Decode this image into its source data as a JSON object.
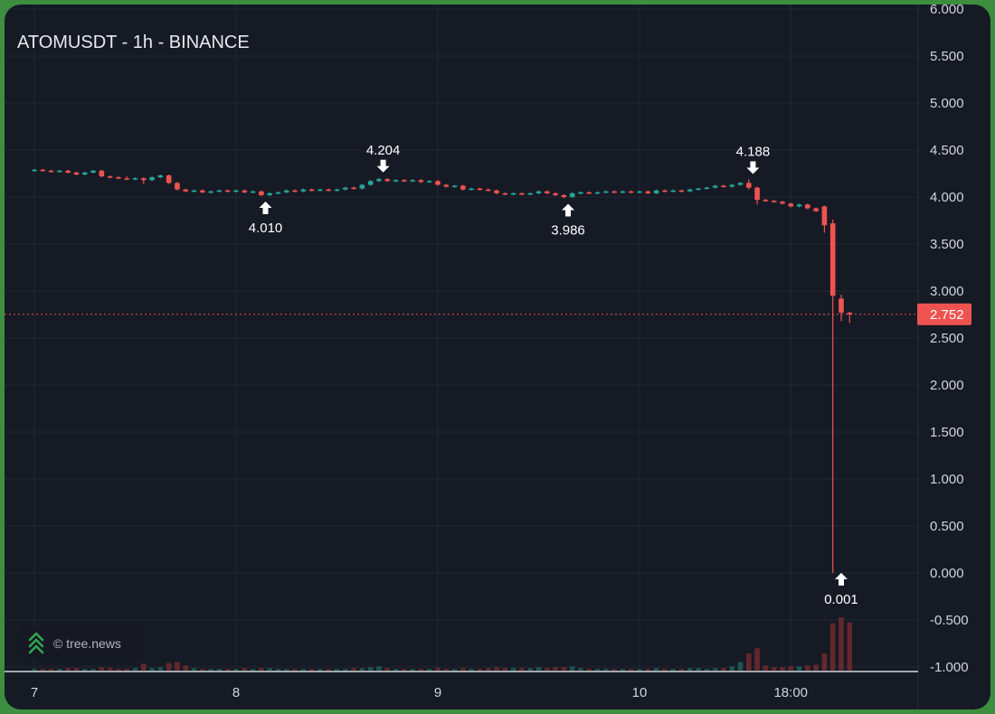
{
  "chart_data": {
    "type": "candlestick",
    "title": "ATOMUSDT - 1h - BINANCE",
    "y_ticks": [
      "6.000",
      "5.500",
      "5.000",
      "4.500",
      "4.000",
      "3.500",
      "3.000",
      "2.500",
      "2.000",
      "1.500",
      "1.000",
      "0.500",
      "0.000",
      "-0.500",
      "-1.000"
    ],
    "ylim": [
      -1.0,
      6.0
    ],
    "x_ticks": [
      {
        "label": "7",
        "hour": 0
      },
      {
        "label": "8",
        "hour": 24
      },
      {
        "label": "9",
        "hour": 48
      },
      {
        "label": "10",
        "hour": 72
      },
      {
        "label": "18:00",
        "hour": 90
      }
    ],
    "xlim": [
      -0.6,
      101.0
    ],
    "last_price": {
      "label": "2.752",
      "value": 2.752
    },
    "annotations": [
      {
        "label": "4.204",
        "hour": 41.5,
        "value": 4.204,
        "kind": "high"
      },
      {
        "label": "4.010",
        "hour": 27.5,
        "value": 4.01,
        "kind": "low"
      },
      {
        "label": "3.986",
        "hour": 63.5,
        "value": 3.986,
        "kind": "low"
      },
      {
        "label": "4.188",
        "hour": 85.5,
        "value": 4.188,
        "kind": "high"
      },
      {
        "label": "0.001",
        "hour": 96.0,
        "value": 0.001,
        "kind": "low"
      }
    ],
    "candles": [
      [
        0,
        4.28,
        4.29,
        4.3,
        4.27,
        0.2
      ],
      [
        1,
        4.29,
        4.28,
        4.3,
        4.27,
        0.2
      ],
      [
        2,
        4.28,
        4.27,
        4.29,
        4.26,
        0.2
      ],
      [
        3,
        4.27,
        4.28,
        4.29,
        4.26,
        0.2
      ],
      [
        4,
        4.28,
        4.26,
        4.29,
        4.25,
        0.3
      ],
      [
        5,
        4.26,
        4.24,
        4.27,
        4.23,
        0.3
      ],
      [
        6,
        4.24,
        4.26,
        4.27,
        4.23,
        0.2
      ],
      [
        7,
        4.26,
        4.28,
        4.29,
        4.25,
        0.2
      ],
      [
        8,
        4.28,
        4.22,
        4.29,
        4.21,
        0.4
      ],
      [
        9,
        4.22,
        4.21,
        4.23,
        4.2,
        0.3
      ],
      [
        10,
        4.21,
        4.2,
        4.22,
        4.19,
        0.2
      ],
      [
        11,
        4.2,
        4.19,
        4.22,
        4.18,
        0.2
      ],
      [
        12,
        4.19,
        4.2,
        4.21,
        4.18,
        0.3
      ],
      [
        13,
        4.2,
        4.18,
        4.21,
        4.14,
        0.8
      ],
      [
        14,
        4.18,
        4.21,
        4.22,
        4.17,
        0.3
      ],
      [
        15,
        4.21,
        4.23,
        4.24,
        4.2,
        0.4
      ],
      [
        16,
        4.23,
        4.15,
        4.24,
        4.14,
        0.9
      ],
      [
        17,
        4.15,
        4.08,
        4.16,
        4.07,
        1.0
      ],
      [
        18,
        4.08,
        4.06,
        4.09,
        4.05,
        0.6
      ],
      [
        19,
        4.06,
        4.07,
        4.08,
        4.05,
        0.3
      ],
      [
        20,
        4.07,
        4.05,
        4.08,
        4.04,
        0.2
      ],
      [
        21,
        4.05,
        4.06,
        4.07,
        4.04,
        0.2
      ],
      [
        22,
        4.06,
        4.07,
        4.08,
        4.05,
        0.2
      ],
      [
        23,
        4.07,
        4.06,
        4.08,
        4.05,
        0.2
      ],
      [
        24,
        4.06,
        4.07,
        4.08,
        4.05,
        0.2
      ],
      [
        25,
        4.07,
        4.05,
        4.08,
        4.04,
        0.3
      ],
      [
        26,
        4.05,
        4.06,
        4.07,
        4.04,
        0.2
      ],
      [
        27,
        4.06,
        4.02,
        4.07,
        4.01,
        0.3
      ],
      [
        28,
        4.02,
        4.04,
        4.05,
        4.01,
        0.3
      ],
      [
        29,
        4.04,
        4.05,
        4.06,
        4.03,
        0.2
      ],
      [
        30,
        4.05,
        4.07,
        4.08,
        4.04,
        0.2
      ],
      [
        31,
        4.07,
        4.06,
        4.08,
        4.05,
        0.2
      ],
      [
        32,
        4.06,
        4.08,
        4.09,
        4.05,
        0.2
      ],
      [
        33,
        4.08,
        4.07,
        4.09,
        4.06,
        0.2
      ],
      [
        34,
        4.07,
        4.08,
        4.09,
        4.06,
        0.2
      ],
      [
        35,
        4.08,
        4.07,
        4.09,
        4.06,
        0.2
      ],
      [
        36,
        4.07,
        4.08,
        4.09,
        4.06,
        0.2
      ],
      [
        37,
        4.08,
        4.1,
        4.11,
        4.07,
        0.2
      ],
      [
        38,
        4.1,
        4.09,
        4.11,
        4.08,
        0.3
      ],
      [
        39,
        4.09,
        4.13,
        4.14,
        4.08,
        0.3
      ],
      [
        40,
        4.13,
        4.17,
        4.18,
        4.12,
        0.4
      ],
      [
        41,
        4.17,
        4.19,
        4.204,
        4.16,
        0.5
      ],
      [
        42,
        4.19,
        4.17,
        4.2,
        4.16,
        0.3
      ],
      [
        43,
        4.17,
        4.18,
        4.19,
        4.16,
        0.2
      ],
      [
        44,
        4.18,
        4.17,
        4.19,
        4.16,
        0.2
      ],
      [
        45,
        4.17,
        4.18,
        4.19,
        4.16,
        0.2
      ],
      [
        46,
        4.18,
        4.16,
        4.19,
        4.15,
        0.2
      ],
      [
        47,
        4.16,
        4.17,
        4.18,
        4.15,
        0.2
      ],
      [
        48,
        4.17,
        4.13,
        4.18,
        4.12,
        0.3
      ],
      [
        49,
        4.13,
        4.11,
        4.14,
        4.1,
        0.2
      ],
      [
        50,
        4.11,
        4.12,
        4.13,
        4.1,
        0.2
      ],
      [
        51,
        4.12,
        4.08,
        4.13,
        4.07,
        0.3
      ],
      [
        52,
        4.08,
        4.09,
        4.1,
        4.07,
        0.2
      ],
      [
        53,
        4.09,
        4.08,
        4.1,
        4.07,
        0.2
      ],
      [
        54,
        4.08,
        4.07,
        4.09,
        4.06,
        0.3
      ],
      [
        55,
        4.07,
        4.04,
        4.08,
        4.03,
        0.4
      ],
      [
        56,
        4.04,
        4.03,
        4.05,
        4.02,
        0.3
      ],
      [
        57,
        4.03,
        4.04,
        4.05,
        4.02,
        0.3
      ],
      [
        58,
        4.04,
        4.03,
        4.05,
        4.02,
        0.3
      ],
      [
        59,
        4.03,
        4.04,
        4.05,
        4.02,
        0.3
      ],
      [
        60,
        4.04,
        4.06,
        4.07,
        4.03,
        0.4
      ],
      [
        61,
        4.06,
        4.04,
        4.07,
        4.03,
        0.3
      ],
      [
        62,
        4.04,
        4.02,
        4.05,
        4.01,
        0.4
      ],
      [
        63,
        4.02,
        4.0,
        4.03,
        3.986,
        0.4
      ],
      [
        64,
        4.0,
        4.04,
        4.05,
        3.99,
        0.5
      ],
      [
        65,
        4.04,
        4.05,
        4.06,
        4.03,
        0.3
      ],
      [
        66,
        4.05,
        4.04,
        4.06,
        4.03,
        0.2
      ],
      [
        67,
        4.04,
        4.05,
        4.06,
        4.03,
        0.2
      ],
      [
        68,
        4.05,
        4.06,
        4.07,
        4.04,
        0.2
      ],
      [
        69,
        4.06,
        4.05,
        4.07,
        4.04,
        0.2
      ],
      [
        70,
        4.05,
        4.06,
        4.07,
        4.04,
        0.2
      ],
      [
        71,
        4.06,
        4.05,
        4.07,
        4.04,
        0.2
      ],
      [
        72,
        4.05,
        4.06,
        4.07,
        4.04,
        0.2
      ],
      [
        73,
        4.06,
        4.04,
        4.07,
        4.03,
        0.2
      ],
      [
        74,
        4.04,
        4.07,
        4.08,
        4.03,
        0.3
      ],
      [
        75,
        4.07,
        4.06,
        4.08,
        4.05,
        0.2
      ],
      [
        76,
        4.06,
        4.07,
        4.08,
        4.05,
        0.2
      ],
      [
        77,
        4.07,
        4.06,
        4.08,
        4.05,
        0.2
      ],
      [
        78,
        4.06,
        4.08,
        4.09,
        4.05,
        0.3
      ],
      [
        79,
        4.08,
        4.09,
        4.1,
        4.07,
        0.3
      ],
      [
        80,
        4.09,
        4.1,
        4.11,
        4.08,
        0.2
      ],
      [
        81,
        4.1,
        4.12,
        4.13,
        4.09,
        0.3
      ],
      [
        82,
        4.12,
        4.11,
        4.13,
        4.1,
        0.3
      ],
      [
        83,
        4.11,
        4.13,
        4.14,
        4.1,
        0.5
      ],
      [
        84,
        4.13,
        4.15,
        4.16,
        4.12,
        1.0
      ],
      [
        85,
        4.15,
        4.1,
        4.188,
        4.08,
        2.0
      ],
      [
        86,
        4.1,
        3.97,
        4.11,
        3.92,
        2.6
      ],
      [
        87,
        3.97,
        3.96,
        3.98,
        3.95,
        0.6
      ],
      [
        88,
        3.96,
        3.95,
        3.97,
        3.94,
        0.4
      ],
      [
        89,
        3.95,
        3.93,
        3.96,
        3.92,
        0.4
      ],
      [
        90,
        3.93,
        3.9,
        3.94,
        3.89,
        0.5
      ],
      [
        91,
        3.9,
        3.92,
        3.93,
        3.89,
        0.5
      ],
      [
        92,
        3.92,
        3.88,
        3.93,
        3.87,
        0.6
      ],
      [
        93,
        3.88,
        3.85,
        3.89,
        3.84,
        0.7
      ],
      [
        94,
        3.9,
        3.7,
        3.91,
        3.62,
        2.0
      ],
      [
        95,
        3.72,
        2.95,
        3.76,
        0.001,
        5.5
      ],
      [
        96,
        2.92,
        2.77,
        2.96,
        2.68,
        6.2
      ],
      [
        97,
        2.77,
        2.752,
        2.78,
        2.66,
        5.6
      ]
    ]
  },
  "watermark": {
    "text": "© tree.news"
  },
  "colors": {
    "up": "#26a69a",
    "down": "#ef5350",
    "background": "#161a25",
    "grid": "#232734",
    "text": "#d1d4dc"
  }
}
